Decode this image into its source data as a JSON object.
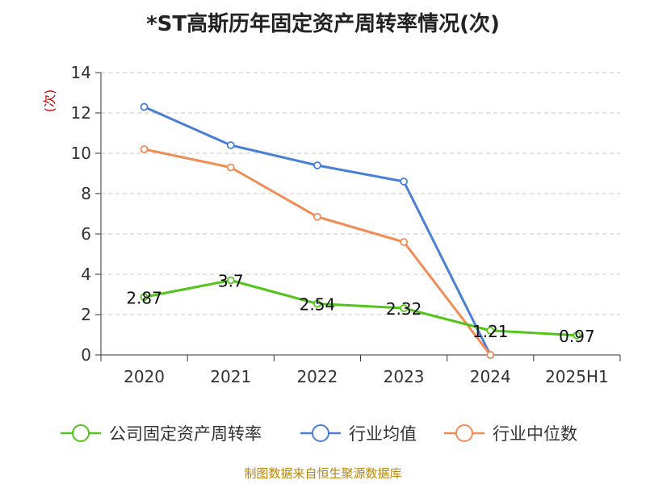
{
  "chart_data": {
    "type": "line",
    "title": "*ST高斯历年固定资产周转率情况(次)",
    "ylabel": "(次)",
    "categories": [
      "2020",
      "2021",
      "2022",
      "2023",
      "2024",
      "2025H1"
    ],
    "ylim": [
      0,
      14
    ],
    "yticks": [
      0,
      2,
      4,
      6,
      8,
      10,
      12,
      14
    ],
    "grid": true,
    "legend_position": "bottom",
    "series": [
      {
        "name": "公司固定资产周转率",
        "color": "#52c41a",
        "values": [
          2.87,
          3.7,
          2.54,
          2.32,
          1.21,
          0.97
        ],
        "labels": [
          "2.87",
          "3.7",
          "2.54",
          "2.32",
          "1.21",
          "0.97"
        ]
      },
      {
        "name": "行业均值",
        "color": "#4a7fd6",
        "values": [
          12.3,
          10.4,
          9.4,
          8.6,
          0,
          null
        ]
      },
      {
        "name": "行业中位数",
        "color": "#f28c55",
        "values": [
          10.2,
          9.3,
          6.85,
          5.6,
          0,
          null
        ]
      }
    ]
  },
  "source": "制图数据来自恒生聚源数据库"
}
